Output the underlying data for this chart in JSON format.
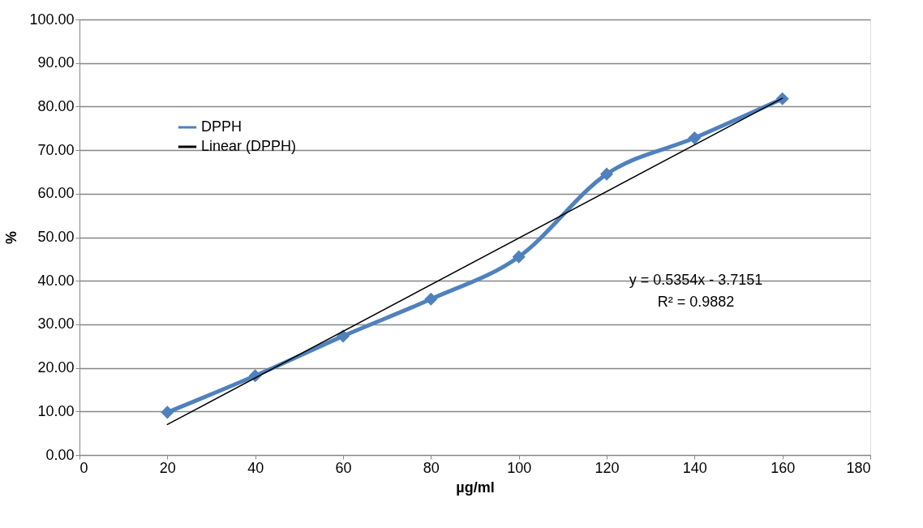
{
  "chart_data": {
    "type": "line",
    "xlabel": "µg/ml",
    "ylabel": "%",
    "x": [
      20,
      40,
      60,
      80,
      100,
      120,
      140,
      160
    ],
    "series": [
      {
        "name": "DPPH",
        "color": "#4f81bd",
        "marker": "diamond",
        "values": [
          9.8,
          18.2,
          27.3,
          35.8,
          45.5,
          64.5,
          72.8,
          81.8
        ]
      },
      {
        "name": "Linear (DPPH)",
        "color": "#000000",
        "marker": "none",
        "x": [
          20,
          160
        ],
        "values": [
          7.0,
          81.9
        ]
      }
    ],
    "xlim": [
      0,
      180
    ],
    "xticks": [
      0,
      20,
      40,
      60,
      80,
      100,
      120,
      140,
      160,
      180
    ],
    "ylim": [
      0,
      100
    ],
    "yticks": [
      {
        "value": 0,
        "label": "0.00"
      },
      {
        "value": 10,
        "label": "10.00"
      },
      {
        "value": 20,
        "label": "20.00"
      },
      {
        "value": 30,
        "label": "30.00"
      },
      {
        "value": 40,
        "label": "40.00"
      },
      {
        "value": 50,
        "label": "50.00"
      },
      {
        "value": 60,
        "label": "60.00"
      },
      {
        "value": 70,
        "label": "70.00"
      },
      {
        "value": 80,
        "label": "80.00"
      },
      {
        "value": 90,
        "label": "90.00"
      },
      {
        "value": 100,
        "label": "100.00"
      }
    ],
    "annotations": [
      "y = 0.5354x - 3.7151",
      "R² = 0.9882"
    ],
    "grid": "y",
    "legend": "top left"
  }
}
